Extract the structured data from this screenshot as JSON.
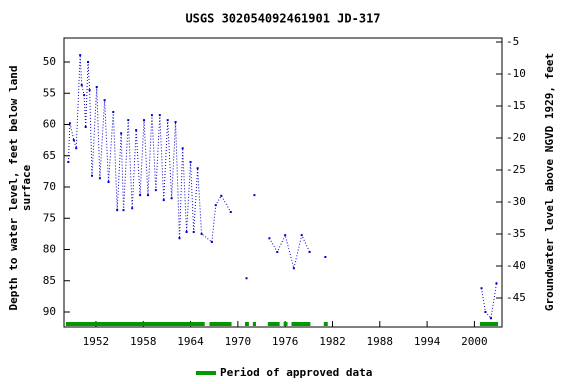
{
  "chart_data": {
    "type": "line",
    "title": "USGS 302054092461901 JD-317",
    "ylabel": [
      "Depth to water level, feet below land",
      "surface"
    ],
    "y2label": "Groundwater level above NGVD 1929, feet",
    "x": [
      1948.5,
      1948.7,
      1949.2,
      1949.5,
      1950.0,
      1950.2,
      1950.5,
      1950.7,
      1951.0,
      1951.2,
      1951.5,
      1952.1,
      1952.5,
      1953.1,
      1953.6,
      1954.2,
      1954.7,
      1955.2,
      1955.5,
      1956.1,
      1956.6,
      1957.1,
      1957.6,
      1958.1,
      1958.6,
      1959.1,
      1959.6,
      1960.1,
      1960.6,
      1961.1,
      1961.6,
      1962.1,
      1962.6,
      1963.0,
      1963.5,
      1964.0,
      1964.4,
      1964.9,
      1965.4,
      1966.7,
      1967.2,
      1967.9,
      1969.1,
      null,
      1971.1,
      null,
      1972.1,
      null,
      1974.0,
      1975.0,
      1976.0,
      1977.1,
      1978.1,
      1979.1,
      null,
      1981.1,
      null,
      2000.9,
      2001.4,
      2002.1,
      2002.8
    ],
    "series": [
      {
        "name": "Depth to water level",
        "color": "#0000cc",
        "values": [
          66.0,
          59.8,
          62.5,
          63.8,
          48.9,
          53.7,
          55.3,
          60.4,
          50.0,
          54.5,
          68.2,
          54.0,
          68.6,
          56.1,
          69.2,
          58.0,
          73.7,
          61.4,
          73.7,
          59.3,
          73.4,
          60.9,
          71.3,
          59.3,
          71.3,
          58.5,
          70.5,
          58.5,
          72.1,
          59.3,
          71.8,
          59.6,
          78.2,
          63.8,
          77.2,
          66.0,
          77.2,
          67.0,
          77.5,
          78.8,
          72.9,
          71.4,
          74.0,
          null,
          84.6,
          null,
          71.3,
          null,
          78.2,
          80.4,
          77.7,
          83.0,
          77.7,
          80.4,
          null,
          81.2,
          null,
          86.2,
          90.0,
          91.0,
          85.4
        ]
      }
    ],
    "approved_periods": [
      [
        1948.2,
        1965.8
      ],
      [
        1966.4,
        1969.2
      ],
      [
        1970.9,
        1971.4
      ],
      [
        1971.9,
        1972.3
      ],
      [
        1973.8,
        1975.3
      ],
      [
        1975.8,
        1976.3
      ],
      [
        1976.8,
        1979.2
      ],
      [
        1980.9,
        1981.4
      ],
      [
        2000.7,
        2003.0
      ]
    ],
    "approved_color": "#009900",
    "approved_label": "Period of approved data",
    "xlim": [
      1947.95,
      2003.5
    ],
    "xticks": [
      1952,
      1958,
      1964,
      1970,
      1976,
      1982,
      1988,
      1994,
      2000
    ],
    "ylim": [
      46.16,
      92.4
    ],
    "y_inverted": true,
    "yticks": [
      50,
      55,
      60,
      65,
      70,
      75,
      80,
      85,
      90
    ],
    "y2lim": [
      -4.375,
      -49.53
    ],
    "y2ticks": [
      -5,
      -10,
      -15,
      -20,
      -25,
      -30,
      -35,
      -40,
      -45
    ]
  }
}
